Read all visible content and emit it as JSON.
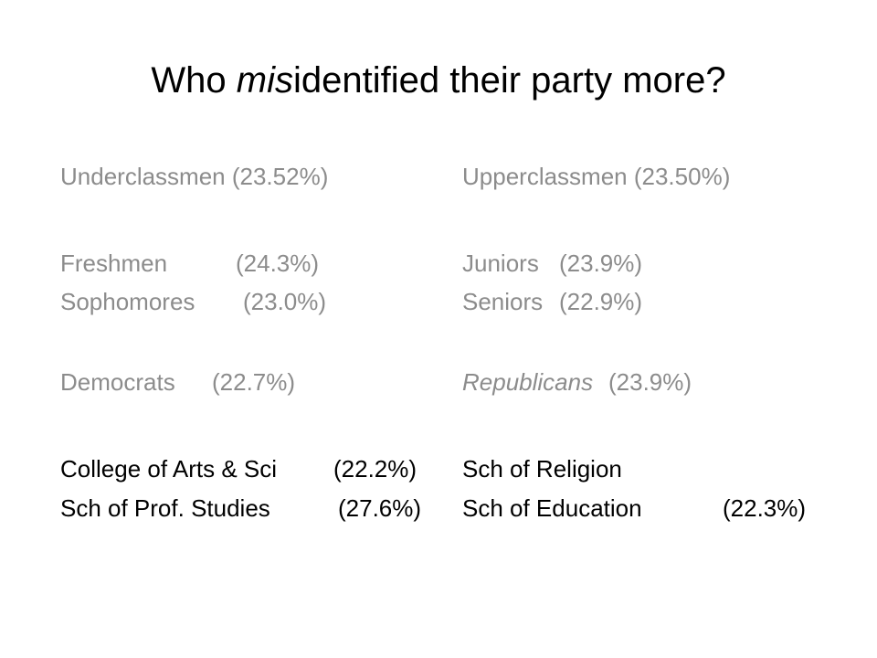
{
  "title": {
    "before": "Who ",
    "emphasis": "mis",
    "after": "identified their party more?"
  },
  "left": {
    "header": "Underclassmen (23.52%)",
    "rows": [
      {
        "name": "Freshmen",
        "value": "(24.3%)"
      },
      {
        "name": "Sophomores",
        "value": "(23.0%)"
      },
      {
        "name": "Democrats",
        "value": "(22.7%)"
      },
      {
        "name": "College of Arts & Sci",
        "value": "(22.2%)"
      },
      {
        "name": "Sch of Prof. Studies",
        "value": "(27.6%)"
      }
    ]
  },
  "right": {
    "header": "Upperclassmen (23.50%)",
    "rows": [
      {
        "name": "Juniors",
        "value": "(23.9%)"
      },
      {
        "name": "Seniors",
        "value": "(22.9%)"
      },
      {
        "name": "Republicans",
        "value": "(23.9%)"
      },
      {
        "name": "Sch of Religion"
      },
      {
        "name": "Sch of Education",
        "value": "(22.3%)"
      }
    ]
  }
}
